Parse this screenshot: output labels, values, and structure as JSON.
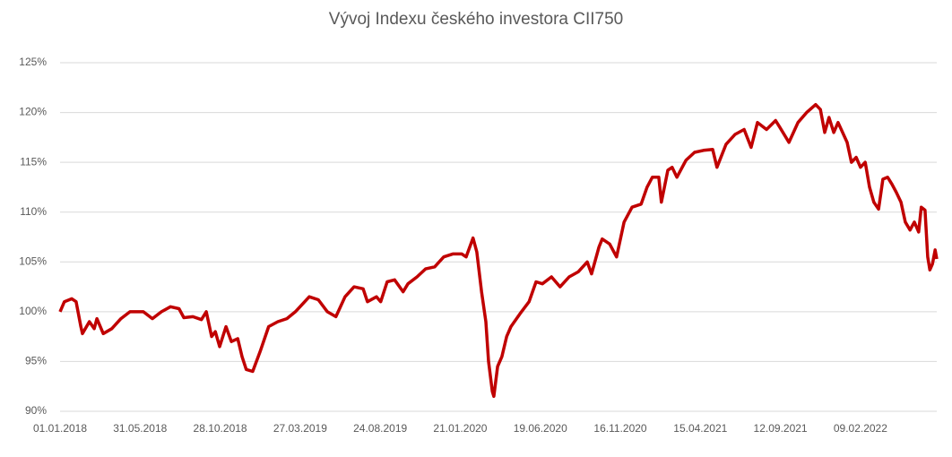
{
  "chart_data": {
    "type": "line",
    "title": "Vývoj Indexu českého investora CII750",
    "x": [
      "01.01.2018",
      "09.01.2018",
      "23.01.2018",
      "31.01.2018",
      "09.02.2018",
      "12.02.2018",
      "25.02.2018",
      "06.03.2018",
      "11.03.2018",
      "23.03.2018",
      "08.04.2018",
      "25.04.2018",
      "12.05.2018",
      "06.06.2018",
      "23.06.2018",
      "10.07.2018",
      "27.07.2018",
      "12.08.2018",
      "21.08.2018",
      "07.09.2018",
      "23.09.2018",
      "02.10.2018",
      "12.10.2018",
      "19.10.2018",
      "27.10.2018",
      "08.11.2018",
      "18.11.2018",
      "30.11.2018",
      "08.12.2018",
      "16.12.2018",
      "28.12.2018",
      "11.01.2019",
      "27.01.2019",
      "13.02.2019",
      "02.03.2019",
      "18.03.2019",
      "13.04.2019",
      "30.04.2019",
      "17.05.2019",
      "02.06.2019",
      "19.06.2019",
      "06.07.2019",
      "23.07.2019",
      "31.07.2019",
      "17.08.2019",
      "25.08.2019",
      "06.09.2019",
      "20.09.2019",
      "06.10.2019",
      "15.10.2019",
      "01.11.2019",
      "17.11.2019",
      "04.12.2019",
      "21.12.2019",
      "07.01.2020",
      "24.01.2020",
      "01.02.2020",
      "14.02.2020",
      "21.02.2020",
      "01.03.2020",
      "09.03.2020",
      "14.03.2020",
      "21.03.2020",
      "24.03.2020",
      "31.03.2020",
      "08.04.2020",
      "17.04.2020",
      "25.04.2020",
      "12.05.2020",
      "29.05.2020",
      "11.06.2020",
      "23.06.2020",
      "10.07.2020",
      "26.07.2020",
      "12.08.2020",
      "29.08.2020",
      "15.09.2020",
      "23.09.2020",
      "07.10.2020",
      "13.10.2020",
      "27.10.2020",
      "09.11.2020",
      "23.11.2020",
      "08.12.2020",
      "25.12.2020",
      "05.01.2021",
      "15.01.2021",
      "27.01.2021",
      "01.02.2021",
      "13.02.2021",
      "21.02.2021",
      "02.03.2021",
      "19.03.2021",
      "04.04.2021",
      "21.04.2021",
      "08.05.2021",
      "16.05.2021",
      "02.06.2021",
      "19.06.2021",
      "06.07.2021",
      "19.07.2021",
      "31.07.2021",
      "17.08.2021",
      "03.09.2021",
      "11.09.2021",
      "28.09.2021",
      "15.10.2021",
      "31.10.2021",
      "17.11.2021",
      "26.11.2021",
      "04.12.2021",
      "12.12.2021",
      "21.12.2021",
      "29.12.2021",
      "15.01.2022",
      "23.01.2022",
      "01.02.2022",
      "09.02.2022",
      "18.02.2022",
      "26.02.2022",
      "06.03.2022",
      "15.03.2022",
      "23.03.2022",
      "01.04.2022",
      "09.04.2022",
      "17.04.2022",
      "26.04.2022",
      "04.05.2022",
      "13.05.2022",
      "21.05.2022",
      "29.05.2022",
      "03.06.2022",
      "10.06.2022",
      "15.06.2022",
      "19.06.2022",
      "24.06.2022",
      "29.06.2022",
      "02.07.2022"
    ],
    "series": [
      {
        "name": "CII750",
        "color": "#c00000",
        "values": [
          100,
          101,
          101.3,
          101,
          98.5,
          97.8,
          99,
          98.3,
          99.3,
          97.8,
          98.3,
          99.3,
          100,
          100,
          99.3,
          100,
          100.5,
          100.3,
          99.4,
          99.5,
          99.2,
          100,
          97.5,
          98,
          96.5,
          98.5,
          97,
          97.3,
          95.5,
          94.2,
          94,
          96,
          98.5,
          99,
          99.3,
          100,
          101.5,
          101.2,
          100,
          99.5,
          101.5,
          102.5,
          102.3,
          101,
          101.5,
          101,
          103,
          103.2,
          102,
          102.8,
          103.5,
          104.3,
          104.5,
          105.5,
          105.8,
          105.8,
          105.5,
          107.4,
          106,
          102,
          99,
          95,
          92,
          91.5,
          94.5,
          95.5,
          97.5,
          98.5,
          99.8,
          101,
          103,
          102.8,
          103.5,
          102.5,
          103.5,
          104,
          105,
          103.8,
          106.5,
          107.3,
          106.8,
          105.5,
          109,
          110.5,
          110.8,
          112.5,
          113.5,
          113.5,
          111,
          114.2,
          114.5,
          113.5,
          115.2,
          116,
          116.2,
          116.3,
          114.5,
          116.8,
          117.8,
          118.3,
          116.5,
          119,
          118.3,
          119.2,
          118.5,
          117,
          119,
          120,
          120.8,
          120.3,
          118,
          119.5,
          118,
          119,
          117,
          115,
          115.5,
          114.5,
          115,
          112.5,
          111,
          110.3,
          113.3,
          113.5,
          112.8,
          112,
          111,
          109,
          108.2,
          109,
          108,
          110.5,
          110.2,
          105.5,
          104.2,
          104.8,
          106.2,
          105.3
        ]
      }
    ],
    "xlim": [
      "01.01.2018",
      "02.07.2022"
    ],
    "xticks": [
      "01.01.2018",
      "31.05.2018",
      "28.10.2018",
      "27.03.2019",
      "24.08.2019",
      "21.01.2020",
      "19.06.2020",
      "16.11.2020",
      "15.04.2021",
      "12.09.2021",
      "09.02.2022"
    ],
    "ylim": [
      90,
      125
    ],
    "yticks": [
      {
        "value": 90,
        "label": "90%"
      },
      {
        "value": 95,
        "label": "95%"
      },
      {
        "value": 100,
        "label": "100%"
      },
      {
        "value": 105,
        "label": "105%"
      },
      {
        "value": 110,
        "label": "110%"
      },
      {
        "value": 115,
        "label": "115%"
      },
      {
        "value": 120,
        "label": "120%"
      },
      {
        "value": 125,
        "label": "125%"
      }
    ],
    "grid": true
  }
}
